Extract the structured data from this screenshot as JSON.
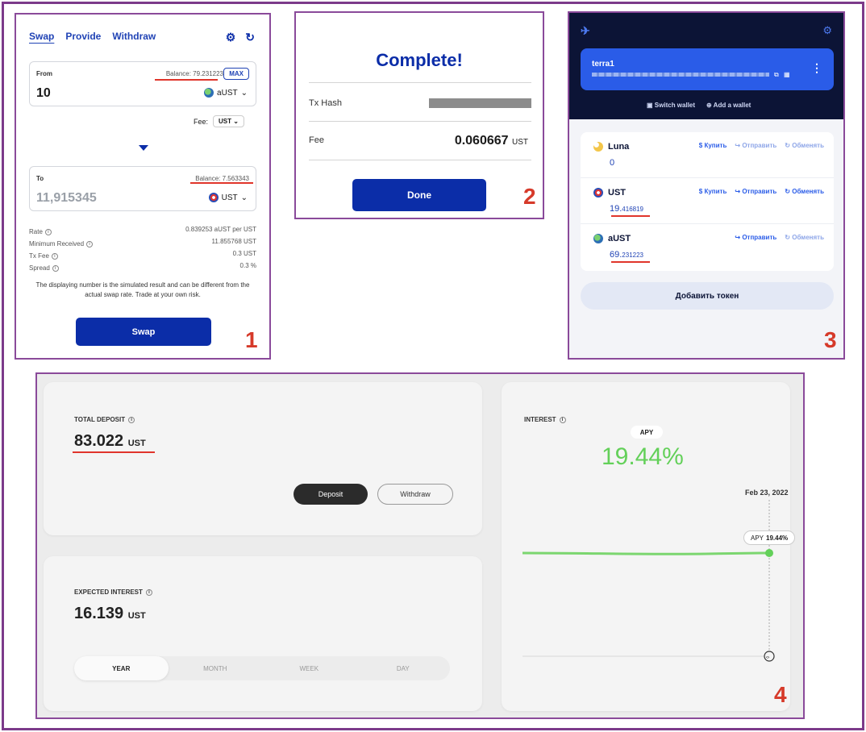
{
  "panel1": {
    "tabs": [
      "Swap",
      "Provide",
      "Withdraw"
    ],
    "from": {
      "label": "From",
      "balance": "Balance: 79.231223",
      "max": "MAX",
      "amount": "10",
      "token": "aUST"
    },
    "fee": {
      "label": "Fee:",
      "token": "UST"
    },
    "to": {
      "label": "To",
      "balance": "Balance: 7.563343",
      "amount": "11,915345",
      "token": "UST"
    },
    "stats": [
      {
        "key": "Rate",
        "value": "0.839253 aUST per UST"
      },
      {
        "key": "Minimum Received",
        "value": "11.855768 UST"
      },
      {
        "key": "Tx Fee",
        "value": "0.3 UST"
      },
      {
        "key": "Spread",
        "value": "0.3 %"
      }
    ],
    "disclaimer": "The displaying number is the simulated result and can be different from the actual swap rate. Trade at your own risk.",
    "swap_button": "Swap",
    "number": "1"
  },
  "panel2": {
    "title": "Complete!",
    "tx_hash_label": "Tx Hash",
    "fee_label": "Fee",
    "fee_value": "0.060667",
    "fee_unit": "UST",
    "done_button": "Done",
    "number": "2"
  },
  "panel3": {
    "wallet_name": "terra1",
    "switch_wallet": "Switch wallet",
    "add_wallet": "Add a wallet",
    "tokens": [
      {
        "name": "Luna",
        "balance_main": "0",
        "balance_small": "",
        "buy": "Купить",
        "send": "Отправить",
        "swap": "Обменять"
      },
      {
        "name": "UST",
        "balance_main": "19.",
        "balance_small": "416819",
        "buy": "Купить",
        "send": "Отправить",
        "swap": "Обменять"
      },
      {
        "name": "aUST",
        "balance_main": "69.",
        "balance_small": "231223",
        "buy": "",
        "send": "Отправить",
        "swap": "Обменять"
      }
    ],
    "add_token": "Добавить токен",
    "number": "3"
  },
  "panel4": {
    "total_deposit_label": "TOTAL DEPOSIT",
    "total_deposit_value": "83.022",
    "total_deposit_unit": "UST",
    "deposit_button": "Deposit",
    "withdraw_button": "Withdraw",
    "expected_interest_label": "EXPECTED INTEREST",
    "expected_interest_value": "16.139",
    "expected_interest_unit": "UST",
    "periods": [
      "YEAR",
      "MONTH",
      "WEEK",
      "DAY"
    ],
    "interest_label": "INTEREST",
    "apy_label": "APY",
    "apy_value": "19.44%",
    "chart_date": "Feb 23, 2022",
    "tooltip_label": "APY",
    "tooltip_value": "19.44%",
    "number": "4"
  },
  "colors": {
    "brand_blue": "#0b2da8",
    "highlight_red": "#e0352b",
    "apy_green": "#63d059",
    "frame_purple": "#7c3a8a"
  }
}
